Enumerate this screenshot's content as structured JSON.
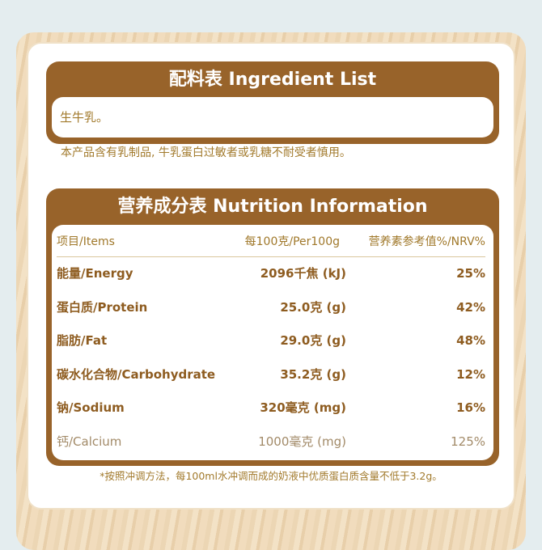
{
  "ingredients": {
    "title": "配料表 Ingredient List",
    "content": "生牛乳。",
    "allergen_note": "本产品含有乳制品, 牛乳蛋白过敏者或乳糖不耐受者慎用。"
  },
  "nutrition": {
    "title": "营养成分表 Nutrition Information",
    "headers": [
      "项目/Items",
      "每100克/Per100g",
      "营养素参考值%/NRV%"
    ],
    "rows": [
      [
        "能量/Energy",
        "2096千焦 (kJ)",
        "25%"
      ],
      [
        "蛋白质/Protein",
        "25.0克 (g)",
        "42%"
      ],
      [
        "脂肪/Fat",
        "29.0克 (g)",
        "48%"
      ],
      [
        "碳水化合物/Carbohydrate",
        "35.2克 (g)",
        "12%"
      ],
      [
        "钠/Sodium",
        "320毫克 (mg)",
        "16%"
      ],
      [
        "钙/Calcium",
        "1000毫克 (mg)",
        "125%"
      ]
    ],
    "footnote": "*按照冲调方法，每100ml水冲调而成的奶液中优质蛋白质含量不低于3.2g。"
  },
  "colors": {
    "brown": "#98632a",
    "text": "#a27a2c"
  }
}
